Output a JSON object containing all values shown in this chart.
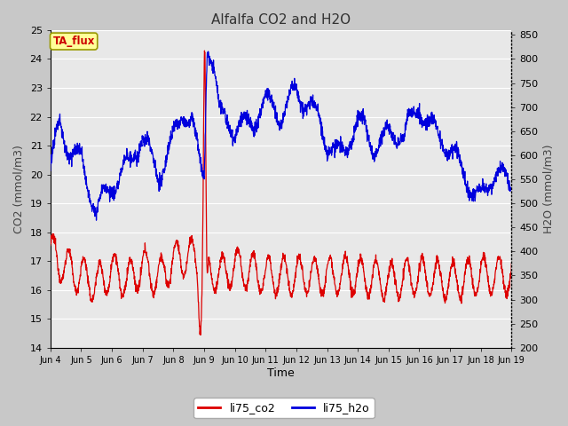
{
  "title": "Alfalfa CO2 and H2O",
  "xlabel": "Time",
  "ylabel_left": "CO2 (mmol/m3)",
  "ylabel_right": "H2O (mmol/m3)",
  "ylim_left": [
    14.0,
    25.0
  ],
  "ylim_right": [
    200,
    860
  ],
  "yticks_left": [
    14.0,
    15.0,
    16.0,
    17.0,
    18.0,
    19.0,
    20.0,
    21.0,
    22.0,
    23.0,
    24.0,
    25.0
  ],
  "yticks_right": [
    200,
    250,
    300,
    350,
    400,
    450,
    500,
    550,
    600,
    650,
    700,
    750,
    800,
    850
  ],
  "xtick_labels": [
    "Jun 4",
    "Jun 5",
    "Jun 6",
    "Jun 7",
    "Jun 8",
    "Jun 9",
    "Jun 10",
    "Jun 11",
    "Jun 12",
    "Jun 13",
    "Jun 14",
    "Jun 15",
    "Jun 16",
    "Jun 17",
    "Jun 18",
    "Jun 19"
  ],
  "annotation_text": "TA_flux",
  "annotation_color": "#cc0000",
  "annotation_bg": "#ffff99",
  "annotation_border": "#999900",
  "color_co2": "#dd0000",
  "color_h2o": "#0000dd",
  "legend_labels": [
    "li75_co2",
    "li75_h2o"
  ],
  "fig_bg": "#c8c8c8",
  "plot_bg": "#e8e8e8",
  "grid_color": "#ffffff",
  "n_points": 2000,
  "title_fontsize": 11,
  "axis_label_fontsize": 9,
  "tick_fontsize": 8
}
